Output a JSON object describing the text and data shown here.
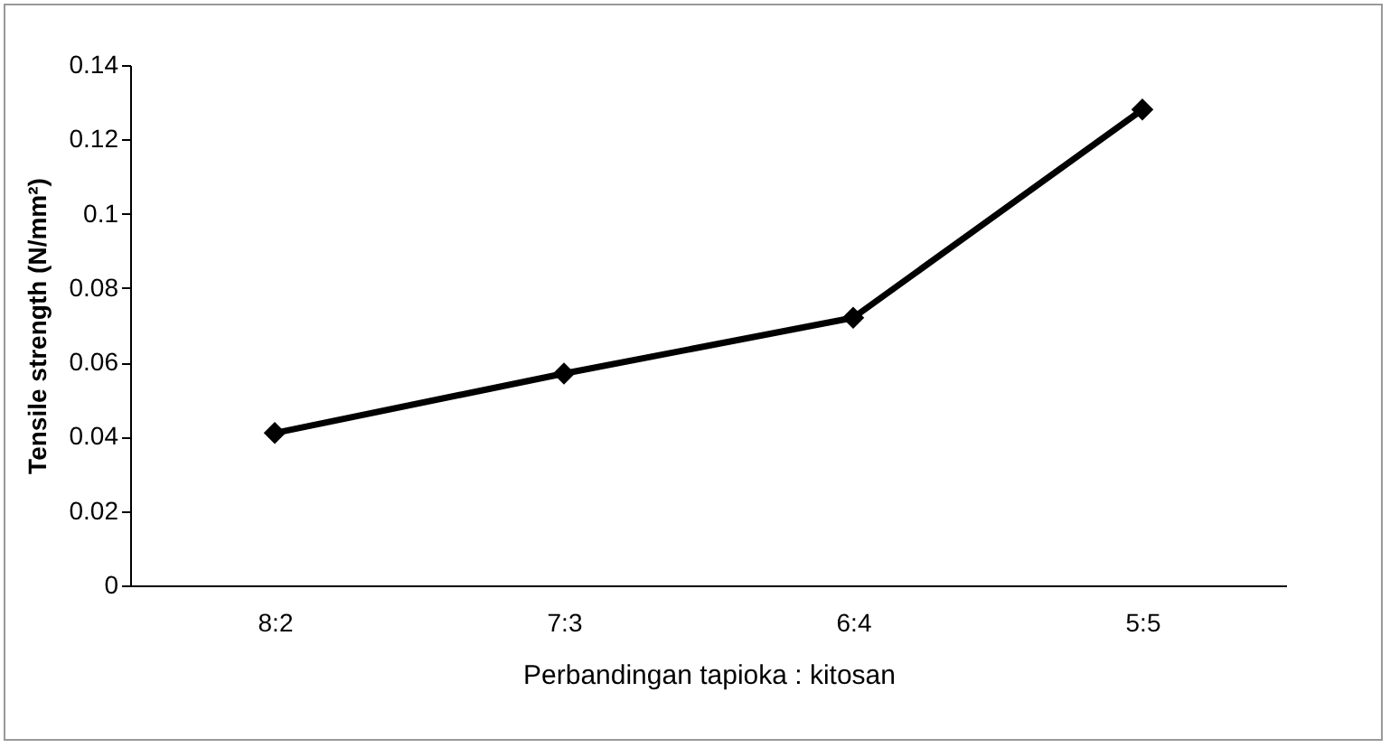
{
  "chart_data": {
    "type": "line",
    "xlabel": "Perbandingan tapioka : kitosan",
    "ylabel": "Tensile strength (N/mm²)",
    "categories": [
      "8:2",
      "7:3",
      "6:4",
      "5:5"
    ],
    "series": [
      {
        "color": "#000000",
        "values": [
          0.041,
          0.057,
          0.072,
          0.128
        ]
      }
    ],
    "ylim": [
      0,
      0.14
    ],
    "yticks": [
      0,
      0.02,
      0.04,
      0.06,
      0.08,
      0.1,
      0.12,
      0.14
    ],
    "marker": "diamond",
    "line_style": "solid"
  }
}
